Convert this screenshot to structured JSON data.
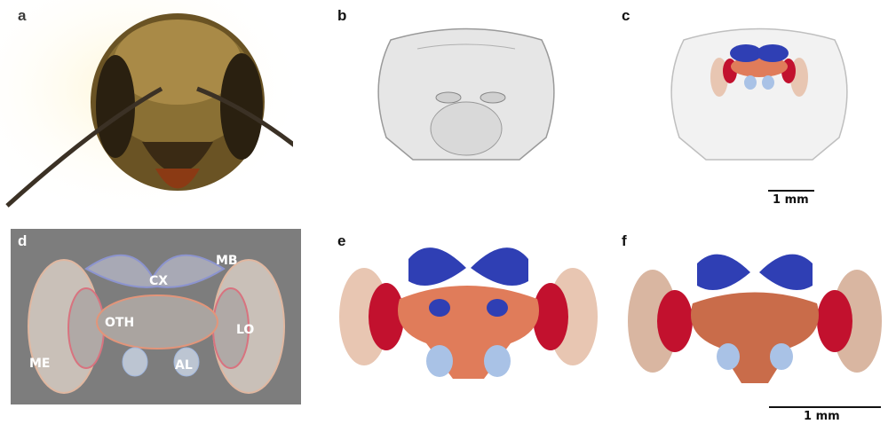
{
  "panels": {
    "a": {
      "letter": "a"
    },
    "b": {
      "letter": "b"
    },
    "c": {
      "letter": "c",
      "scale_label": "1 mm"
    },
    "d": {
      "letter": "d",
      "regions": {
        "mb": "MB",
        "cx": "CX",
        "oth": "OTH",
        "lo": "LO",
        "me": "ME",
        "al": "AL"
      }
    },
    "e": {
      "letter": "e"
    },
    "f": {
      "letter": "f",
      "scale_label": "1 mm"
    }
  },
  "colors": {
    "mushroom_body": "#2f3fb4",
    "central_body": "#e07c5a",
    "lobula": "#c2112e",
    "medulla": "#e8c6b2",
    "antennal_lobe": "#a9c2e6"
  }
}
